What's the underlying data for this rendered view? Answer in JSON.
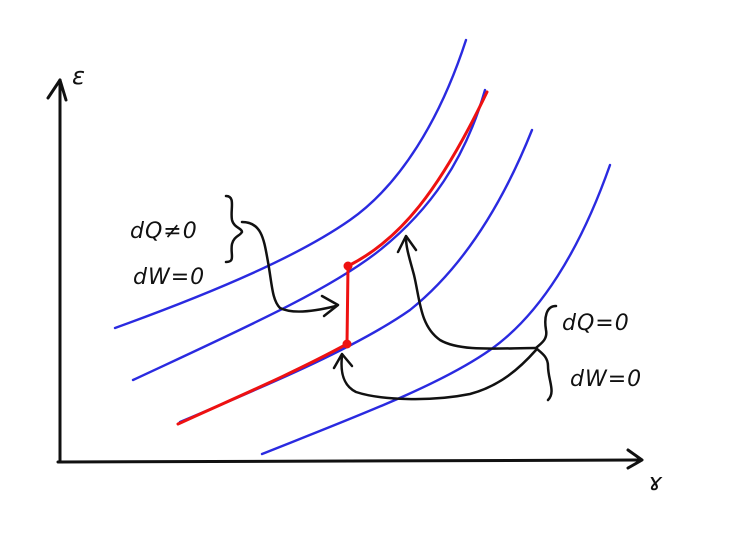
{
  "axes": {
    "y_label": "ε",
    "x_label": "ɤ"
  },
  "annotations": {
    "left": {
      "line1": "dQ≠0",
      "line2": "dW=0"
    },
    "right": {
      "line1": "dQ=0",
      "line2": "dW=0"
    }
  },
  "colors": {
    "curves": "#2a2ae0",
    "path": "#ee1111",
    "ink": "#111111",
    "background": "#ffffff"
  }
}
